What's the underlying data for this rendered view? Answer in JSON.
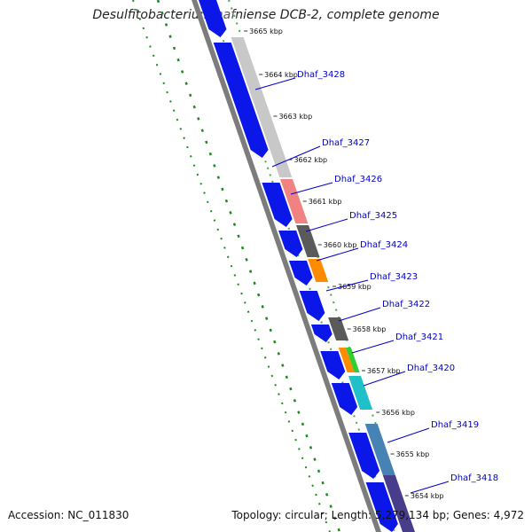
{
  "title": "Desulfitobacterium hafniense DCB-2, complete genome",
  "footer": {
    "accession": "Accession: NC_011830",
    "topology": "Topology: circular; Length: 5,279,134 bp; Genes: 4,972"
  },
  "colors": {
    "backbone": "#7c7c7c",
    "gene_blue": "#0b17e8",
    "gc_dots": "#1e8a1e",
    "label_line": "#0000cc"
  },
  "ticks": [
    "3665 kbp",
    "3664 kbp",
    "3663 kbp",
    "3662 kbp",
    "3661 kbp",
    "3660 kbp",
    "3659 kbp",
    "3658 kbp",
    "3657 kbp",
    "3656 kbp",
    "3655 kbp",
    "3654 kbp"
  ],
  "genes": [
    "Dhaf_3428",
    "Dhaf_3427",
    "Dhaf_3426",
    "Dhaf_3425",
    "Dhaf_3424",
    "Dhaf_3423",
    "Dhaf_3422",
    "Dhaf_3421",
    "Dhaf_3420",
    "Dhaf_3419",
    "Dhaf_3418"
  ],
  "cog_features": [
    {
      "color": "#c8c8c8"
    },
    {
      "color": "#f08282"
    },
    {
      "color": "#5a5a5a"
    },
    {
      "color": "#ff8c00"
    },
    {
      "color": "#5a5a5a"
    },
    {
      "color": "#ff8c00"
    },
    {
      "color": "#32cd32"
    },
    {
      "color": "#20c0c8"
    },
    {
      "color": "#4682b4"
    },
    {
      "color": "#483d8b"
    }
  ]
}
